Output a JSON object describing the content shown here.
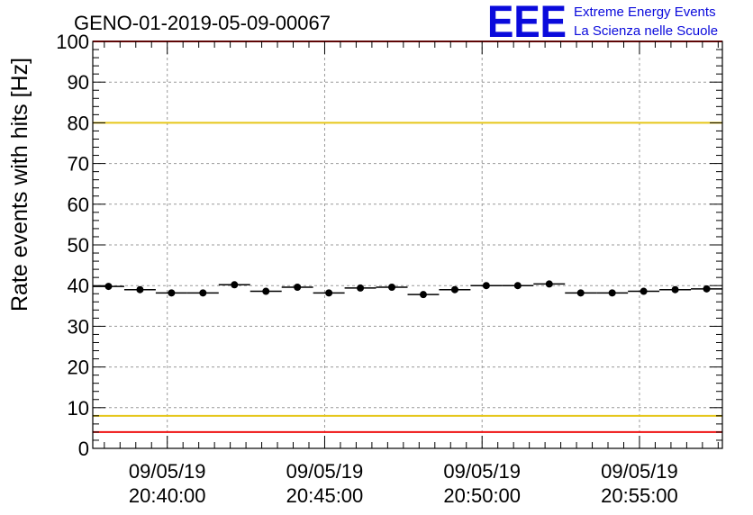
{
  "chart_data": {
    "type": "scatter",
    "title": "GENO-01-2019-05-09-00067",
    "ylabel": "Rate events with hits [Hz]",
    "xlabel": "",
    "ylim": [
      0,
      100
    ],
    "y_ticks": [
      "0",
      "10",
      "20",
      "30",
      "40",
      "50",
      "60",
      "70",
      "80",
      "90",
      "100"
    ],
    "x_ticks": [
      {
        "date": "09/05/19",
        "time": "20:40:00"
      },
      {
        "date": "09/05/19",
        "time": "20:45:00"
      },
      {
        "date": "09/05/19",
        "time": "20:50:00"
      },
      {
        "date": "09/05/19",
        "time": "20:55:00"
      }
    ],
    "xlim": [
      "20:37:38",
      "20:57:38"
    ],
    "grid": true,
    "series": [
      {
        "x": [
          "20:38:08",
          "20:39:08",
          "20:40:08",
          "20:41:08",
          "20:42:08",
          "20:43:08",
          "20:44:08",
          "20:45:08",
          "20:46:08",
          "20:47:08",
          "20:48:08",
          "20:49:08",
          "20:50:08",
          "20:51:08",
          "20:52:08",
          "20:53:08",
          "20:54:08",
          "20:55:08",
          "20:56:08",
          "20:57:08"
        ],
        "values": [
          39.8,
          39.0,
          38.2,
          38.2,
          40.2,
          38.6,
          39.6,
          38.2,
          39.4,
          39.6,
          37.8,
          39.0,
          40.0,
          40.0,
          40.4,
          38.2,
          38.2,
          38.6,
          39.0,
          39.2
        ],
        "color": "#000000"
      }
    ],
    "reference_lines": [
      {
        "y": 80,
        "color": "#e6c619"
      },
      {
        "y": 8,
        "color": "#e6c619"
      },
      {
        "y": 100,
        "color": "#ee1111"
      },
      {
        "y": 4,
        "color": "#ee1111"
      }
    ]
  },
  "logo": {
    "letters": "EEE",
    "line1": "Extreme Energy Events",
    "line2": "La Scienza nelle Scuole",
    "color": "#0a0adc"
  }
}
